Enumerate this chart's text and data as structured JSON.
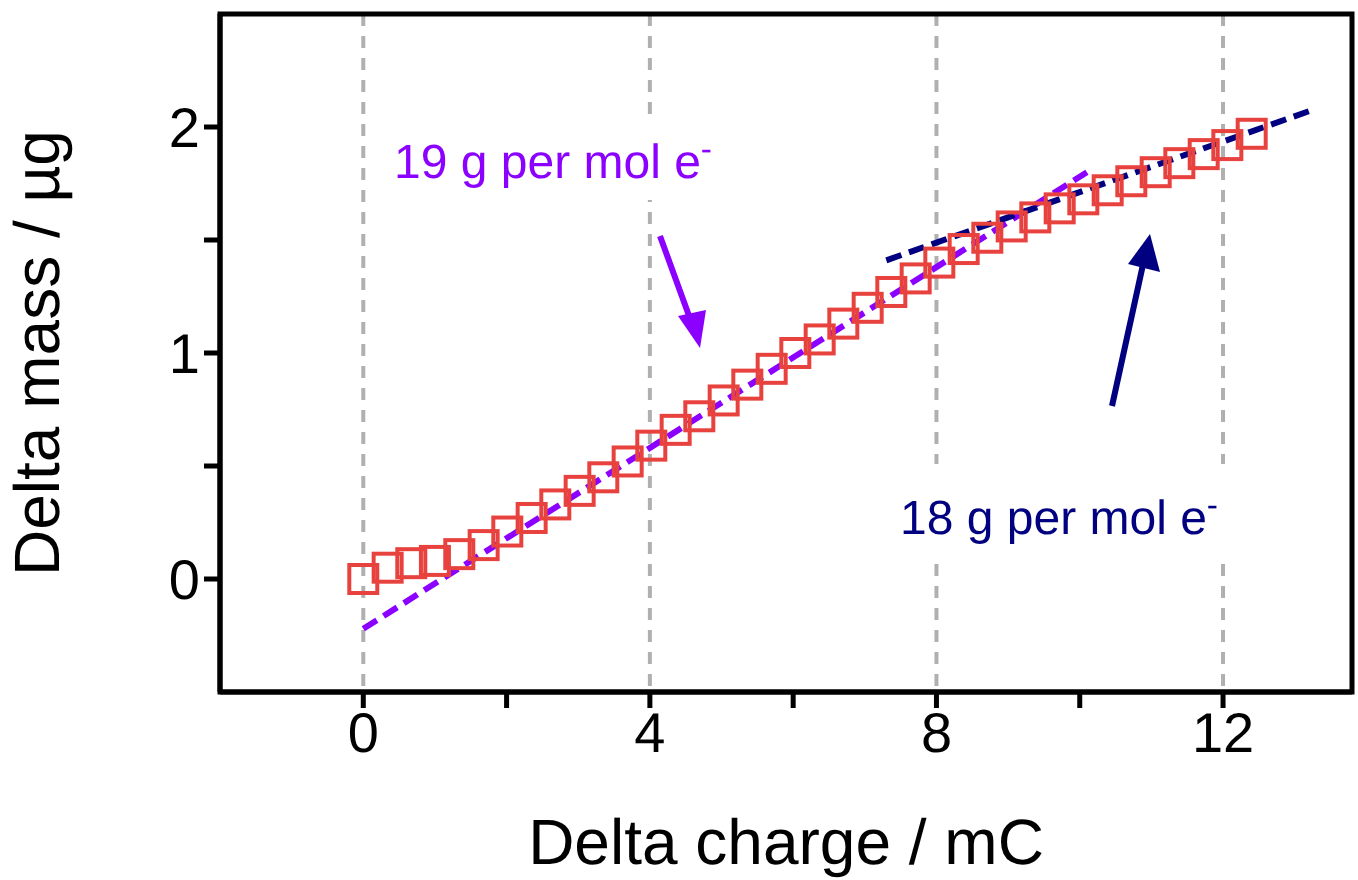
{
  "chart_data": {
    "type": "scatter",
    "xlabel": "Delta charge / mC",
    "ylabel": "Delta mass / µg",
    "xlim": [
      -2,
      13.8
    ],
    "xticks": [
      0,
      {
        "value": 2,
        "label": null
      },
      4,
      {
        "value": 6,
        "label": null
      },
      8,
      {
        "value": 10,
        "label": null
      },
      12
    ],
    "ylim": [
      -0.5,
      2.5
    ],
    "yticks": [
      0,
      {
        "value": 0.5,
        "label": null
      },
      1,
      {
        "value": 1.5,
        "label": null
      },
      2
    ],
    "grid": "x",
    "series": [
      {
        "marker": "square",
        "color": "#e8423f",
        "x": [
          0,
          0.34,
          0.67,
          1.0,
          1.34,
          1.68,
          2.01,
          2.35,
          2.68,
          3.02,
          3.35,
          3.69,
          4.02,
          4.36,
          4.69,
          5.03,
          5.36,
          5.7,
          6.03,
          6.37,
          6.7,
          7.04,
          7.37,
          7.71,
          8.04,
          8.38,
          8.71,
          9.05,
          9.38,
          9.72,
          10.05,
          10.39,
          10.72,
          11.06,
          11.39,
          11.73,
          12.06,
          12.4
        ],
        "values": [
          0.0,
          0.05,
          0.07,
          0.08,
          0.11,
          0.15,
          0.21,
          0.27,
          0.33,
          0.39,
          0.45,
          0.52,
          0.59,
          0.66,
          0.72,
          0.79,
          0.86,
          0.93,
          1.0,
          1.06,
          1.13,
          1.2,
          1.27,
          1.33,
          1.4,
          1.46,
          1.51,
          1.56,
          1.6,
          1.64,
          1.68,
          1.72,
          1.76,
          1.8,
          1.84,
          1.88,
          1.92,
          1.97
        ]
      },
      {
        "type": "line",
        "color": "#8b00ff",
        "x": [
          0,
          10.1
        ],
        "values": [
          -0.22,
          1.8
        ],
        "line_style": "dashed"
      },
      {
        "type": "line",
        "color": "#000080",
        "x": [
          7.3,
          13.2
        ],
        "values": [
          1.41,
          2.07
        ],
        "line_style": "dashed"
      }
    ],
    "annotations": [
      "19 g per mol e$^{-}$",
      "18 g per mol e$^{-}$"
    ]
  }
}
